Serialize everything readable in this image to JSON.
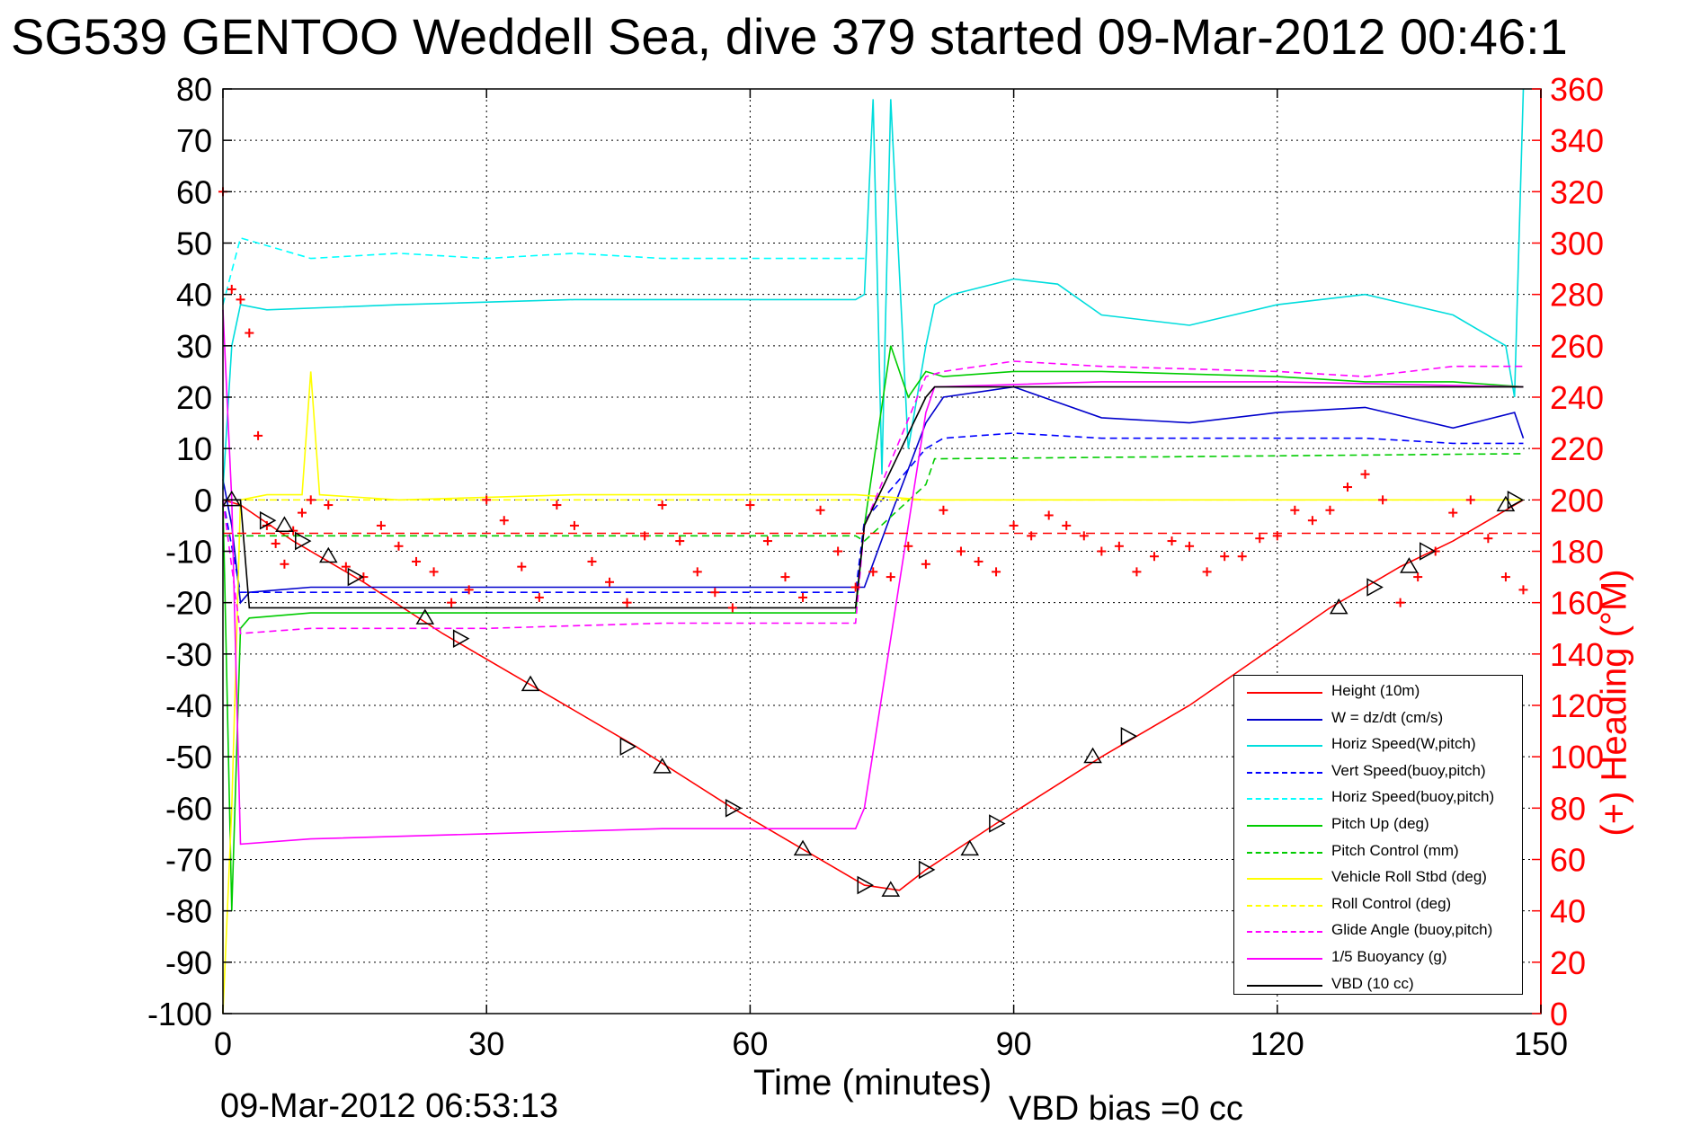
{
  "title": "SG539 GENTOO Weddell Sea, dive 379 started 09-Mar-2012 00:46:1",
  "footer": {
    "timestamp": "09-Mar-2012 06:53:13",
    "vbd_bias": "VBD bias =0 cc"
  },
  "chart_data": {
    "type": "line",
    "title": "SG539 GENTOO Weddell Sea, dive 379 started 09-Mar-2012 00:46:1",
    "xlabel": "Time (minutes)",
    "ylabel": "",
    "y2label": "(+) Heading (°M)",
    "xlim": [
      0,
      150
    ],
    "ylim": [
      -100,
      80
    ],
    "y2lim": [
      0,
      360
    ],
    "xticks": [
      0,
      30,
      60,
      90,
      120,
      150
    ],
    "yticks": [
      80,
      70,
      60,
      50,
      40,
      30,
      20,
      10,
      0,
      -10,
      -20,
      -30,
      -40,
      -50,
      -60,
      -70,
      -80,
      -90,
      -100
    ],
    "y2ticks": [
      360,
      340,
      320,
      300,
      280,
      260,
      240,
      220,
      200,
      180,
      160,
      140,
      120,
      100,
      80,
      60,
      40,
      20,
      0
    ],
    "grid": true,
    "legend_position": "bottom-right",
    "series": [
      {
        "name": "Height (10m)",
        "color": "#ff0000",
        "style": "solid",
        "x": [
          0,
          2,
          8,
          16,
          25,
          35,
          47,
          58,
          66,
          73,
          77,
          80,
          88,
          100,
          110,
          126,
          134,
          140,
          148
        ],
        "y": [
          0,
          -1,
          -8,
          -16,
          -26,
          -36,
          -48,
          -60,
          -68,
          -75,
          -76,
          -72,
          -63,
          -50,
          -40,
          -21,
          -13,
          -8,
          0
        ]
      },
      {
        "name": "W = dz/dt (cm/s)",
        "color": "#0000cc",
        "style": "solid",
        "x": [
          0,
          1,
          2,
          3,
          10,
          30,
          50,
          70,
          73,
          76,
          80,
          82,
          90,
          95,
          100,
          110,
          120,
          130,
          135,
          140,
          147,
          148
        ],
        "y": [
          4,
          -5,
          -20,
          -18,
          -17,
          -17,
          -17,
          -17,
          -17,
          -3,
          15,
          20,
          22,
          19,
          16,
          15,
          17,
          18,
          16,
          14,
          17,
          12
        ]
      },
      {
        "name": "Horiz Speed(W,pitch)",
        "color": "#00dddd",
        "style": "solid",
        "x": [
          0,
          1,
          2,
          5,
          20,
          40,
          60,
          72,
          73,
          74,
          75,
          76,
          78,
          80,
          81,
          83,
          90,
          95,
          100,
          110,
          120,
          130,
          140,
          146,
          147,
          148
        ],
        "y": [
          2,
          30,
          38,
          37,
          38,
          39,
          39,
          39,
          40,
          78,
          5,
          78,
          10,
          30,
          38,
          40,
          43,
          42,
          36,
          34,
          38,
          40,
          36,
          30,
          20,
          80
        ]
      },
      {
        "name": "Vert Speed(buoy,pitch)",
        "color": "#0000ff",
        "style": "dashed",
        "x": [
          0,
          2,
          72,
          73,
          80,
          82,
          90,
          100,
          110,
          120,
          130,
          140,
          148
        ],
        "y": [
          0,
          -18,
          -18,
          -4,
          10,
          12,
          13,
          12,
          12,
          12,
          12,
          11,
          11
        ]
      },
      {
        "name": "Horiz Speed(buoy,pitch)",
        "color": "#00ffff",
        "style": "dashed",
        "x": [
          0,
          2,
          10,
          20,
          30,
          40,
          50,
          60,
          72,
          73
        ],
        "y": [
          38,
          51,
          47,
          48,
          47,
          48,
          47,
          47,
          47,
          47
        ]
      },
      {
        "name": "Pitch Up (deg)",
        "color": "#00cc00",
        "style": "solid",
        "x": [
          0,
          1,
          2,
          3,
          10,
          30,
          50,
          72,
          73,
          76,
          78,
          80,
          82,
          90,
          100,
          120,
          130,
          140,
          148
        ],
        "y": [
          0,
          -80,
          -25,
          -23,
          -22,
          -22,
          -22,
          -22,
          -5,
          30,
          20,
          25,
          24,
          25,
          25,
          24,
          23,
          23,
          22
        ]
      },
      {
        "name": "Pitch Control (mm)",
        "color": "#00cc00",
        "style": "dashed",
        "x": [
          0,
          2,
          72,
          73,
          80,
          81,
          148
        ],
        "y": [
          -7,
          -7,
          -7,
          -8,
          3,
          8,
          9
        ]
      },
      {
        "name": "Vehicle Roll Stbd (deg)",
        "color": "#ffff00",
        "style": "solid",
        "x": [
          0,
          1,
          2,
          5,
          9,
          10,
          11,
          20,
          40,
          60,
          72,
          80,
          90,
          100,
          120,
          130,
          140,
          148
        ],
        "y": [
          -100,
          -60,
          0,
          1,
          1,
          25,
          1,
          0,
          1,
          1,
          1,
          0,
          0,
          0,
          0,
          0,
          0,
          0
        ]
      },
      {
        "name": "Roll Control (deg)",
        "color": "#ffff00",
        "style": "dashed",
        "x": [
          0,
          148
        ],
        "y": [
          0,
          0
        ]
      },
      {
        "name": "Glide Angle (buoy,pitch)",
        "color": "#ff00ff",
        "style": "dashed",
        "x": [
          0,
          2,
          10,
          30,
          50,
          72,
          73,
          80,
          82,
          90,
          100,
          120,
          130,
          140,
          148
        ],
        "y": [
          0,
          -26,
          -25,
          -25,
          -24,
          -24,
          -5,
          24,
          25,
          27,
          26,
          25,
          24,
          26,
          26
        ]
      },
      {
        "name": "1/5 Buoyancy (g)",
        "color": "#ff00ff",
        "style": "solid",
        "x": [
          0,
          1,
          2,
          10,
          30,
          50,
          72,
          73,
          80,
          81,
          100,
          120,
          148
        ],
        "y": [
          37,
          0,
          -67,
          -66,
          -65,
          -64,
          -64,
          -60,
          17,
          22,
          23,
          23,
          22
        ]
      },
      {
        "name": "VBD (10 cc)",
        "color": "#000000",
        "style": "solid",
        "x": [
          0,
          2,
          3,
          72,
          73,
          80,
          81,
          148
        ],
        "y": [
          0,
          0,
          -21,
          -21,
          -5,
          20,
          22,
          22
        ]
      }
    ],
    "heading_series": {
      "axis": "right",
      "color": "#ff0000",
      "marker": "+",
      "x": [
        0,
        1,
        2,
        3,
        4,
        5,
        6,
        7,
        8,
        9,
        10,
        12,
        14,
        16,
        18,
        20,
        22,
        24,
        26,
        28,
        30,
        32,
        34,
        36,
        38,
        40,
        42,
        44,
        46,
        48,
        50,
        52,
        54,
        56,
        58,
        60,
        62,
        64,
        66,
        68,
        70,
        72,
        74,
        76,
        78,
        80,
        82,
        84,
        86,
        88,
        90,
        92,
        94,
        96,
        98,
        100,
        102,
        104,
        106,
        108,
        110,
        112,
        114,
        116,
        118,
        120,
        122,
        124,
        126,
        128,
        130,
        132,
        134,
        136,
        138,
        140,
        142,
        144,
        146,
        148
      ],
      "y": [
        320,
        282,
        278,
        265,
        225,
        190,
        183,
        175,
        188,
        195,
        200,
        198,
        174,
        170,
        190,
        182,
        176,
        172,
        160,
        165,
        200,
        192,
        174,
        162,
        198,
        190,
        176,
        168,
        160,
        186,
        198,
        184,
        172,
        164,
        158,
        198,
        184,
        170,
        162,
        196,
        180,
        166,
        172,
        170,
        182,
        175,
        196,
        180,
        176,
        172,
        190,
        186,
        194,
        190,
        186,
        180,
        182,
        172,
        178,
        184,
        182,
        172,
        178,
        178,
        185,
        186,
        196,
        192,
        196,
        205,
        210,
        200,
        160,
        170,
        180,
        195,
        200,
        185,
        170,
        165
      ]
    },
    "heading_reference": {
      "y2": 187,
      "color": "#ff0000",
      "style": "dashed"
    },
    "markers": {
      "color": "#000000",
      "triangle_points": [
        {
          "x": 1,
          "y": 0
        },
        {
          "x": 5,
          "y": -4
        },
        {
          "x": 7,
          "y": -5
        },
        {
          "x": 9,
          "y": -8
        },
        {
          "x": 12,
          "y": -11
        },
        {
          "x": 15,
          "y": -15
        },
        {
          "x": 23,
          "y": -23
        },
        {
          "x": 27,
          "y": -27
        },
        {
          "x": 35,
          "y": -36
        },
        {
          "x": 46,
          "y": -48
        },
        {
          "x": 50,
          "y": -52
        },
        {
          "x": 58,
          "y": -60
        },
        {
          "x": 66,
          "y": -68
        },
        {
          "x": 73,
          "y": -75
        },
        {
          "x": 76,
          "y": -76
        },
        {
          "x": 80,
          "y": -72
        },
        {
          "x": 85,
          "y": -68
        },
        {
          "x": 88,
          "y": -63
        },
        {
          "x": 99,
          "y": -50
        },
        {
          "x": 103,
          "y": -46
        },
        {
          "x": 127,
          "y": -21
        },
        {
          "x": 131,
          "y": -17
        },
        {
          "x": 135,
          "y": -13
        },
        {
          "x": 137,
          "y": -10
        },
        {
          "x": 146,
          "y": -1
        },
        {
          "x": 147,
          "y": 0
        }
      ]
    }
  },
  "colors": {
    "axis": "#000000",
    "right_axis": "#ff0000",
    "grid": "#000000",
    "background": "#ffffff"
  }
}
